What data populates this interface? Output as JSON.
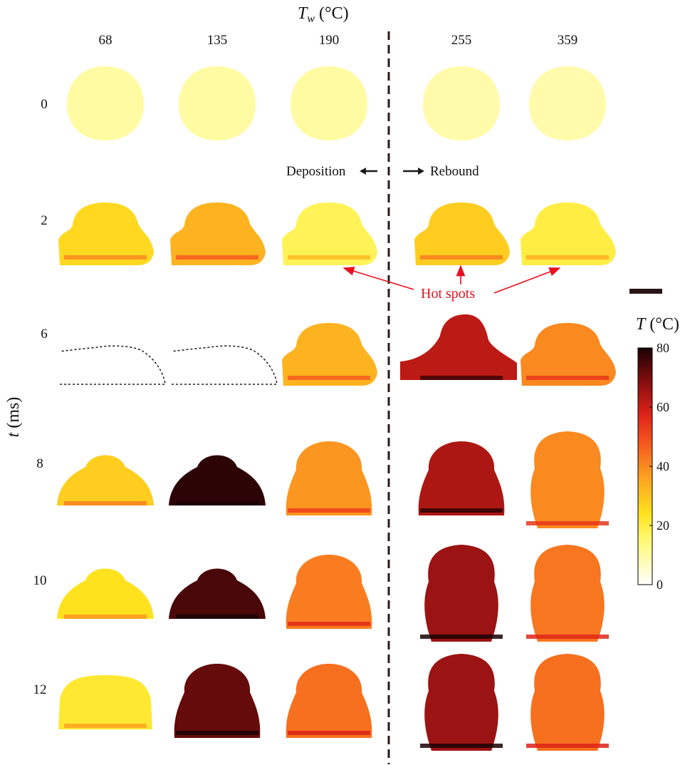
{
  "header": {
    "tw_symbol": "T",
    "tw_sub": "w",
    "tw_unit": " (°C)"
  },
  "columns": [
    "68",
    "135",
    "190",
    "255",
    "359"
  ],
  "rows": [
    "0",
    "2",
    "6",
    "8",
    "10",
    "12"
  ],
  "y_axis": {
    "symbol": "t",
    "unit": " (ms)"
  },
  "regimes": {
    "left": "Deposition",
    "right": "Rebound"
  },
  "annotation": {
    "hot_spots": "Hot spots"
  },
  "colorbar": {
    "symbol": "T",
    "unit": " (°C)",
    "ticks": [
      "0",
      "20",
      "40",
      "60",
      "80"
    ],
    "min": 0,
    "max": 80
  },
  "colors": {
    "annotation": "#e8101e",
    "cold": "#fff200",
    "hot": "#1a0203"
  },
  "droplets": [
    {
      "row": "0",
      "col": "68",
      "shape": "ball",
      "temp": 10
    },
    {
      "row": "0",
      "col": "135",
      "shape": "ball",
      "temp": 10
    },
    {
      "row": "0",
      "col": "190",
      "shape": "ball",
      "temp": 10
    },
    {
      "row": "0",
      "col": "255",
      "shape": "ball",
      "temp": 9
    },
    {
      "row": "0",
      "col": "359",
      "shape": "ball",
      "temp": 9
    },
    {
      "row": "2",
      "col": "68",
      "shape": "cap",
      "temp": 26
    },
    {
      "row": "2",
      "col": "135",
      "shape": "cap",
      "temp": 33
    },
    {
      "row": "2",
      "col": "190",
      "shape": "cap",
      "temp": 18
    },
    {
      "row": "2",
      "col": "255",
      "shape": "cap",
      "temp": 28
    },
    {
      "row": "2",
      "col": "359",
      "shape": "cap",
      "temp": 20
    },
    {
      "row": "6",
      "col": "68",
      "shape": "outline",
      "temp": 0
    },
    {
      "row": "6",
      "col": "135",
      "shape": "outline",
      "temp": 0
    },
    {
      "row": "6",
      "col": "190",
      "shape": "cap",
      "temp": 33
    },
    {
      "row": "6",
      "col": "255",
      "shape": "tower",
      "temp": 62
    },
    {
      "row": "6",
      "col": "359",
      "shape": "cap",
      "temp": 40
    },
    {
      "row": "8",
      "col": "68",
      "shape": "dome",
      "temp": 28
    },
    {
      "row": "8",
      "col": "135",
      "shape": "dome",
      "temp": 78
    },
    {
      "row": "8",
      "col": "190",
      "shape": "bell",
      "temp": 38
    },
    {
      "row": "8",
      "col": "255",
      "shape": "bell",
      "temp": 64
    },
    {
      "row": "8",
      "col": "359",
      "shape": "column",
      "temp": 40
    },
    {
      "row": "10",
      "col": "68",
      "shape": "dome",
      "temp": 24
    },
    {
      "row": "10",
      "col": "135",
      "shape": "dome",
      "temp": 75
    },
    {
      "row": "10",
      "col": "190",
      "shape": "bell",
      "temp": 42
    },
    {
      "row": "10",
      "col": "255",
      "shape": "column",
      "temp": 66
    },
    {
      "row": "10",
      "col": "359",
      "shape": "column",
      "temp": 43
    },
    {
      "row": "12",
      "col": "68",
      "shape": "block",
      "temp": 22
    },
    {
      "row": "12",
      "col": "135",
      "shape": "bell",
      "temp": 72
    },
    {
      "row": "12",
      "col": "190",
      "shape": "bell",
      "temp": 44
    },
    {
      "row": "12",
      "col": "255",
      "shape": "column",
      "temp": 66
    },
    {
      "row": "12",
      "col": "359",
      "shape": "column",
      "temp": 44
    }
  ]
}
